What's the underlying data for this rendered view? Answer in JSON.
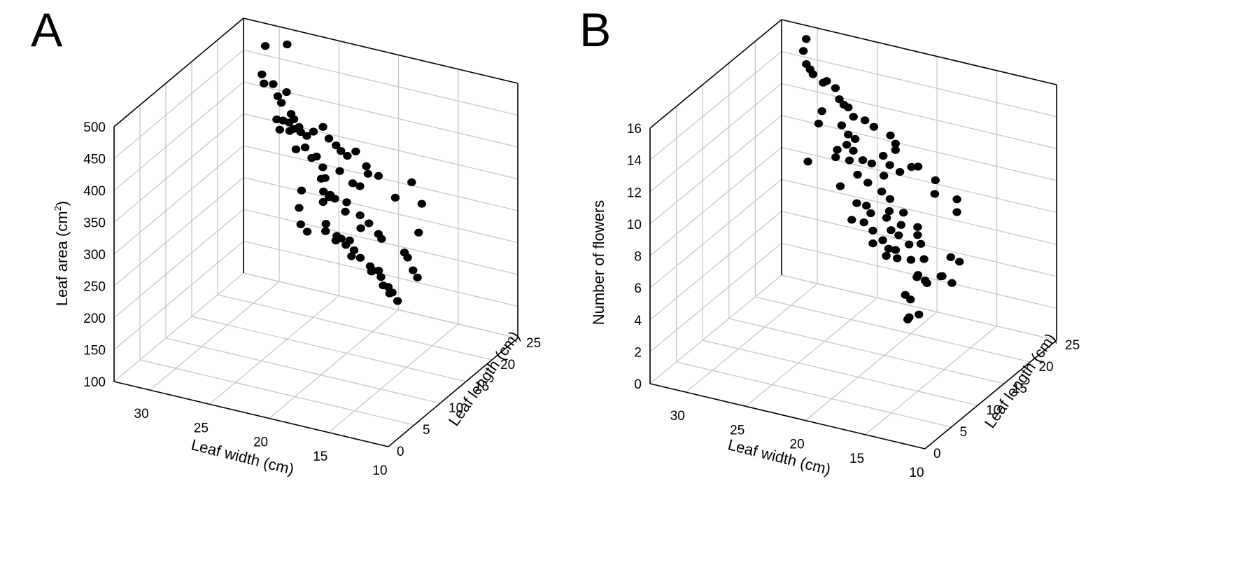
{
  "chart_data": [
    {
      "type": "scatter",
      "panel": "A",
      "xlabel": "Leaf width (cm)",
      "ylabel": "Leaf length (cm)",
      "zlabel_main": "Leaf area (cm",
      "zlabel_sup": "2",
      "zlabel_tail": ")",
      "xlim": [
        10,
        33
      ],
      "ylim": [
        0,
        25
      ],
      "zlim": [
        100,
        500
      ],
      "xticks": [
        "30",
        "25",
        "20",
        "15",
        "10"
      ],
      "xtick_values": [
        30,
        25,
        20,
        15,
        10
      ],
      "yticks": [
        "0",
        "5",
        "10",
        "15",
        "20",
        "25"
      ],
      "ytick_values": [
        0,
        5,
        10,
        15,
        20,
        25
      ],
      "zticks": [
        "100",
        "150",
        "200",
        "250",
        "300",
        "350",
        "400",
        "450",
        "500"
      ],
      "ztick_values": [
        100,
        150,
        200,
        250,
        300,
        350,
        400,
        450,
        500
      ],
      "points": [
        [
          28.6,
          23.3,
          490
        ],
        [
          31.0,
          24.6,
          468
        ],
        [
          30.5,
          22.8,
          438
        ],
        [
          30.2,
          22.5,
          427
        ],
        [
          29.6,
          22.9,
          426
        ],
        [
          29.0,
          22.4,
          413
        ],
        [
          28.0,
          21.8,
          428
        ],
        [
          28.0,
          20.8,
          418
        ],
        [
          27.1,
          20.6,
          406
        ],
        [
          26.6,
          20.0,
          404
        ],
        [
          26.0,
          19.6,
          397
        ],
        [
          27.0,
          20.0,
          397
        ],
        [
          26.5,
          19.7,
          391
        ],
        [
          27.9,
          20.9,
          390
        ],
        [
          25.9,
          19.7,
          389
        ],
        [
          25.0,
          18.8,
          393
        ],
        [
          24.7,
          19.4,
          397
        ],
        [
          23.6,
          18.7,
          414
        ],
        [
          22.8,
          18.0,
          404
        ],
        [
          22.2,
          18.0,
          396
        ],
        [
          21.4,
          17.1,
          397
        ],
        [
          20.6,
          16.5,
          397
        ],
        [
          19.9,
          16.5,
          407
        ],
        [
          18.4,
          15.1,
          400
        ],
        [
          18.0,
          14.5,
          394
        ],
        [
          16.6,
          13.3,
          405
        ],
        [
          14.8,
          12.4,
          385
        ],
        [
          12.3,
          9.8,
          438
        ],
        [
          11.1,
          9.0,
          415
        ],
        [
          11.5,
          9.3,
          366
        ],
        [
          29.0,
          22.2,
          378
        ],
        [
          28.4,
          21.4,
          370
        ],
        [
          27.3,
          20.8,
          377
        ],
        [
          25.4,
          19.4,
          369
        ],
        [
          24.5,
          18.6,
          362
        ],
        [
          24.1,
          18.6,
          366
        ],
        [
          23.4,
          18.2,
          355
        ],
        [
          21.5,
          17.1,
          365
        ],
        [
          20.2,
          16.6,
          355
        ],
        [
          19.2,
          15.7,
          361
        ],
        [
          26.6,
          20.4,
          354
        ],
        [
          23.2,
          18.2,
          339
        ],
        [
          22.6,
          17.8,
          318
        ],
        [
          20.7,
          16.6,
          323
        ],
        [
          19.4,
          16.2,
          311
        ],
        [
          18.4,
          15.6,
          307
        ],
        [
          24.1,
          19.5,
          325
        ],
        [
          23.3,
          18.1,
          318
        ],
        [
          22.7,
          17.8,
          314
        ],
        [
          22.0,
          17.3,
          318
        ],
        [
          23.5,
          18.5,
          298
        ],
        [
          20.9,
          16.8,
          306
        ],
        [
          19.0,
          15.4,
          298
        ],
        [
          17.0,
          14.2,
          306
        ],
        [
          16.6,
          13.9,
          302
        ],
        [
          13.6,
          11.4,
          311
        ],
        [
          13.2,
          11.1,
          307
        ],
        [
          12.4,
          10.3,
          296
        ],
        [
          11.9,
          10.0,
          289
        ],
        [
          26.6,
          21.0,
          258
        ],
        [
          26.2,
          20.4,
          238
        ],
        [
          25.7,
          20.5,
          228
        ],
        [
          23.6,
          19.2,
          247
        ],
        [
          22.4,
          18.6,
          249
        ],
        [
          21.2,
          17.6,
          247
        ],
        [
          20.3,
          17.1,
          246
        ],
        [
          19.6,
          16.7,
          240
        ],
        [
          18.3,
          15.6,
          240
        ],
        [
          18.0,
          15.4,
          236
        ],
        [
          17.0,
          14.7,
          235
        ],
        [
          16.0,
          13.8,
          230
        ],
        [
          15.8,
          13.6,
          222
        ],
        [
          15.4,
          13.2,
          228
        ],
        [
          14.7,
          12.6,
          222
        ],
        [
          26.7,
          21.7,
          280
        ],
        [
          23.7,
          19.5,
          256
        ],
        [
          21.9,
          18.3,
          249
        ],
        [
          20.6,
          17.3,
          234
        ],
        [
          18.1,
          15.4,
          234
        ],
        [
          16.6,
          14.2,
          227
        ],
        [
          21.1,
          18.1,
          251
        ],
        [
          17.5,
          15.4,
          238
        ],
        [
          22.7,
          19.1,
          237
        ]
      ]
    },
    {
      "type": "scatter",
      "panel": "B",
      "xlabel": "Leaf width (cm)",
      "ylabel": "Leaf length (cm)",
      "zlabel": "Number of flowers",
      "xlim": [
        10,
        33
      ],
      "ylim": [
        0,
        25
      ],
      "zlim": [
        0,
        16
      ],
      "xticks": [
        "30",
        "25",
        "20",
        "15",
        "10"
      ],
      "xtick_values": [
        30,
        25,
        20,
        15,
        10
      ],
      "yticks": [
        "0",
        "5",
        "10",
        "15",
        "20",
        "25"
      ],
      "ytick_values": [
        0,
        5,
        10,
        15,
        20,
        25
      ],
      "zticks": [
        "0",
        "2",
        "4",
        "6",
        "8",
        "10",
        "12",
        "14",
        "16"
      ],
      "ztick_values": [
        0,
        2,
        4,
        6,
        8,
        10,
        12,
        14,
        16
      ],
      "points": [
        [
          30.5,
          24.0,
          15.5
        ],
        [
          31.0,
          24.6,
          14.5
        ],
        [
          30.4,
          23.8,
          14.0
        ],
        [
          30.0,
          23.6,
          13.8
        ],
        [
          29.8,
          23.7,
          13.5
        ],
        [
          28.6,
          22.9,
          13.4
        ],
        [
          28.0,
          22.2,
          13.8
        ],
        [
          27.0,
          21.6,
          13.7
        ],
        [
          26.5,
          21.2,
          13.2
        ],
        [
          25.9,
          20.7,
          13.1
        ],
        [
          25.4,
          20.4,
          13.1
        ],
        [
          24.7,
          19.8,
          12.8
        ],
        [
          23.3,
          18.8,
          13.1
        ],
        [
          22.2,
          18.0,
          13.1
        ],
        [
          20.2,
          16.6,
          13.3
        ],
        [
          19.6,
          16.2,
          12.6
        ],
        [
          19.6,
          16.2,
          13.0
        ],
        [
          17.6,
          14.7,
          12.3
        ],
        [
          16.7,
          13.9,
          12.7
        ],
        [
          14.5,
          12.2,
          12.7
        ],
        [
          14.6,
          12.3,
          11.8
        ],
        [
          11.6,
          9.7,
          12.7
        ],
        [
          11.6,
          9.7,
          11.9
        ],
        [
          28.7,
          22.9,
          11.6
        ],
        [
          26.3,
          21.2,
          11.6
        ],
        [
          25.4,
          20.4,
          11.4
        ],
        [
          24.6,
          19.9,
          11.4
        ],
        [
          21.2,
          17.5,
          11.6
        ],
        [
          20.3,
          16.7,
          11.4
        ],
        [
          19.1,
          15.9,
          11.4
        ],
        [
          25.7,
          20.8,
          10.6
        ],
        [
          24.8,
          20.0,
          10.6
        ],
        [
          23.7,
          19.3,
          10.4
        ],
        [
          22.6,
          18.5,
          10.6
        ],
        [
          21.1,
          17.4,
          10.4
        ],
        [
          29.2,
          23.4,
          10.6
        ],
        [
          26.8,
          21.5,
          9.9
        ],
        [
          25.3,
          20.4,
          9.8
        ],
        [
          27.2,
          22.1,
          9.2
        ],
        [
          24.4,
          19.9,
          9.2
        ],
        [
          23.1,
          18.9,
          9.2
        ],
        [
          21.5,
          17.9,
          9.2
        ],
        [
          20.5,
          17.2,
          9.1
        ],
        [
          18.8,
          15.9,
          8.9
        ],
        [
          17.0,
          14.5,
          8.7
        ],
        [
          11.3,
          9.5,
          8.9
        ],
        [
          12.6,
          10.8,
          8.6
        ],
        [
          20.6,
          17.3,
          8.3
        ],
        [
          19.0,
          15.9,
          8.1
        ],
        [
          17.0,
          14.5,
          8.2
        ],
        [
          16.6,
          14.2,
          7.8
        ],
        [
          30.8,
          25.0,
          7.5
        ],
        [
          26.5,
          21.4,
          7.7
        ],
        [
          24.6,
          20.2,
          7.3
        ],
        [
          23.4,
          19.3,
          7.6
        ],
        [
          22.9,
          19.0,
          7.3
        ],
        [
          21.0,
          17.7,
          7.7
        ],
        [
          20.5,
          17.4,
          7.1
        ],
        [
          19.6,
          16.8,
          7.1
        ],
        [
          18.2,
          15.6,
          7.1
        ],
        [
          16.2,
          13.9,
          7.0
        ],
        [
          12.5,
          10.8,
          7.0
        ],
        [
          14.0,
          12.1,
          6.8
        ],
        [
          13.8,
          11.9,
          6.9
        ],
        [
          24.0,
          20.2,
          6.2
        ],
        [
          22.9,
          19.4,
          6.1
        ],
        [
          21.5,
          18.1,
          6.1
        ],
        [
          20.7,
          17.4,
          5.9
        ],
        [
          19.9,
          16.9,
          6.1
        ],
        [
          18.0,
          15.5,
          6.2
        ],
        [
          17.1,
          14.8,
          5.6
        ],
        [
          16.0,
          14.0,
          5.5
        ],
        [
          25.5,
          21.3,
          5.8
        ],
        [
          22.9,
          19.4,
          5.3
        ],
        [
          21.3,
          18.3,
          5.1
        ],
        [
          19.9,
          17.2,
          5.5
        ],
        [
          17.5,
          15.5,
          5.2
        ],
        [
          16.2,
          14.1,
          5.6
        ],
        [
          19.0,
          16.7,
          3.5
        ],
        [
          18.8,
          16.7,
          2.0
        ],
        [
          17.2,
          15.2,
          3.0
        ],
        [
          18.5,
          16.3,
          2.3
        ],
        [
          18.3,
          16.1,
          3.5
        ]
      ]
    }
  ]
}
